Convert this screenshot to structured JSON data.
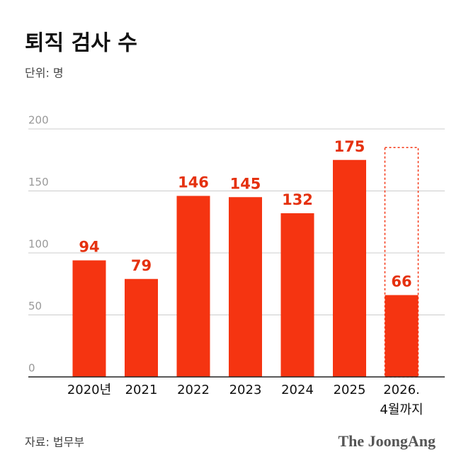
{
  "chart_data": {
    "type": "bar",
    "title": "퇴직 검사 수",
    "subtitle": "단위: 명",
    "categories": [
      "2020년",
      "2021",
      "2022",
      "2023",
      "2024",
      "2025",
      "2026.\n4월까지"
    ],
    "values": [
      94,
      79,
      146,
      145,
      132,
      175,
      66
    ],
    "dashed_values": [
      null,
      null,
      null,
      null,
      null,
      null,
      185
    ],
    "color": "#f53411",
    "label_color": "#e5310f",
    "ylim": [
      0,
      200
    ],
    "yticks": [
      0,
      50,
      100,
      150,
      200
    ],
    "grid": true,
    "source": "자료: 법무부",
    "brand": "The JoongAng"
  }
}
